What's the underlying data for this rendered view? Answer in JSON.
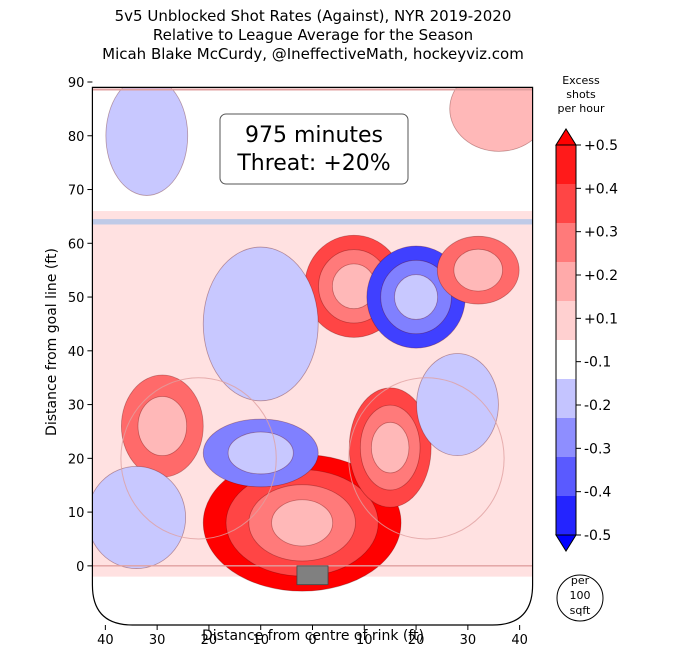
{
  "title_lines": [
    "5v5 Unblocked Shot Rates (Against), NYR 2019-2020",
    "Relative to League Average for the Season",
    "Micah Blake McCurdy, @IneffectiveMath, hockeyviz.com"
  ],
  "annotation": {
    "minutes": "975 minutes",
    "threat": "Threat: +20%"
  },
  "per_area": [
    "per",
    "100",
    "sqft"
  ],
  "colors": {
    "strong_red": "#ff0000",
    "red": "#ff4545",
    "pink": "#ffb8b8",
    "light_pink": "#ffdcdc",
    "light_blue": "#c8c8ff",
    "blue": "#8080ff",
    "dark_blue": "#4040ff",
    "strong_blue": "#0000ff",
    "rink_line_red": "#e0a0a0",
    "blue_line": "#b8c8e8",
    "net": "#808080"
  },
  "chart_data": {
    "type": "heatmap",
    "xlabel": "Distance from centre of rink (ft)",
    "ylabel": "Distance from goal line (ft)",
    "xlim": [
      -42,
      42
    ],
    "ylim": [
      -11,
      90
    ],
    "x_ticks": [
      {
        "value": -40,
        "label": "40"
      },
      {
        "value": -30,
        "label": "30"
      },
      {
        "value": -20,
        "label": "20"
      },
      {
        "value": -10,
        "label": "10"
      },
      {
        "value": 0,
        "label": "0"
      },
      {
        "value": 10,
        "label": "10"
      },
      {
        "value": 20,
        "label": "20"
      },
      {
        "value": 30,
        "label": "30"
      },
      {
        "value": 40,
        "label": "40"
      }
    ],
    "y_ticks": [
      0,
      10,
      20,
      30,
      40,
      50,
      60,
      70,
      80,
      90
    ],
    "colorbar": {
      "label": [
        "Excess",
        "shots",
        "per hour"
      ],
      "ticks": [
        "+0.5",
        "+0.4",
        "+0.3",
        "+0.2",
        "+0.1",
        "-0.1",
        "-0.2",
        "-0.3",
        "-0.4",
        "-0.5"
      ],
      "bands": [
        "#ff1a1a",
        "#ff4545",
        "#ff7a7a",
        "#ffaaaa",
        "#ffd0d0",
        "#ffffff",
        "#c4c4ff",
        "#8e8eff",
        "#5a5aff",
        "#2424ff"
      ]
    },
    "hotspots": [
      {
        "x": -2,
        "y": 8,
        "sx": 11,
        "sy": 7,
        "level": 0.5
      },
      {
        "x": 15,
        "y": 22,
        "sx": 4,
        "sy": 6,
        "level": 0.4
      },
      {
        "x": 8,
        "y": 52,
        "sx": 5,
        "sy": 5,
        "level": 0.4
      },
      {
        "x": 20,
        "y": 50,
        "sx": 5,
        "sy": 5,
        "level": -0.4
      },
      {
        "x": -10,
        "y": 21,
        "sx": 6,
        "sy": 3,
        "level": -0.3
      },
      {
        "x": -29,
        "y": 26,
        "sx": 4,
        "sy": 5,
        "level": 0.3
      },
      {
        "x": 32,
        "y": 55,
        "sx": 4,
        "sy": 3,
        "level": 0.3
      },
      {
        "x": -32,
        "y": 80,
        "sx": 4,
        "sy": 6,
        "level": -0.2
      },
      {
        "x": -34,
        "y": 9,
        "sx": 5,
        "sy": 5,
        "level": -0.2
      },
      {
        "x": -10,
        "y": 45,
        "sx": 6,
        "sy": 8,
        "level": -0.2
      },
      {
        "x": 28,
        "y": 30,
        "sx": 4,
        "sy": 5,
        "level": -0.2
      },
      {
        "x": 36,
        "y": 85,
        "sx": 5,
        "sy": 4,
        "level": 0.2
      }
    ]
  }
}
